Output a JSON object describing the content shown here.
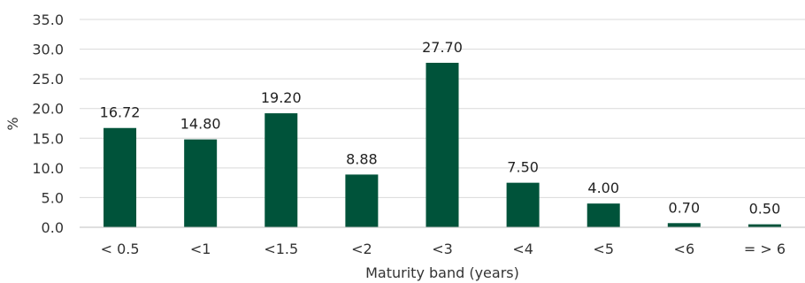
{
  "chart_data": {
    "type": "bar",
    "title": "",
    "xlabel": "Maturity band (years)",
    "ylabel": "%",
    "categories": [
      "< 0.5",
      "<1",
      "<1.5",
      "<2",
      "<3",
      "<4",
      "<5",
      "<6",
      "= > 6"
    ],
    "values": [
      16.72,
      14.8,
      19.2,
      8.88,
      27.7,
      7.5,
      4.0,
      0.7,
      0.5
    ],
    "value_labels": [
      "16.72",
      "14.80",
      "19.20",
      "8.88",
      "27.70",
      "7.50",
      "4.00",
      "0.70",
      "0.50"
    ],
    "ylim": [
      0,
      35
    ],
    "yticks": [
      "0.0",
      "5.0",
      "10.0",
      "15.0",
      "20.0",
      "25.0",
      "30.0",
      "35.0"
    ],
    "ytick_values": [
      0,
      5,
      10,
      15,
      20,
      25,
      30,
      35
    ],
    "grid": true,
    "legend": "none",
    "bar_color": "#00533a"
  }
}
